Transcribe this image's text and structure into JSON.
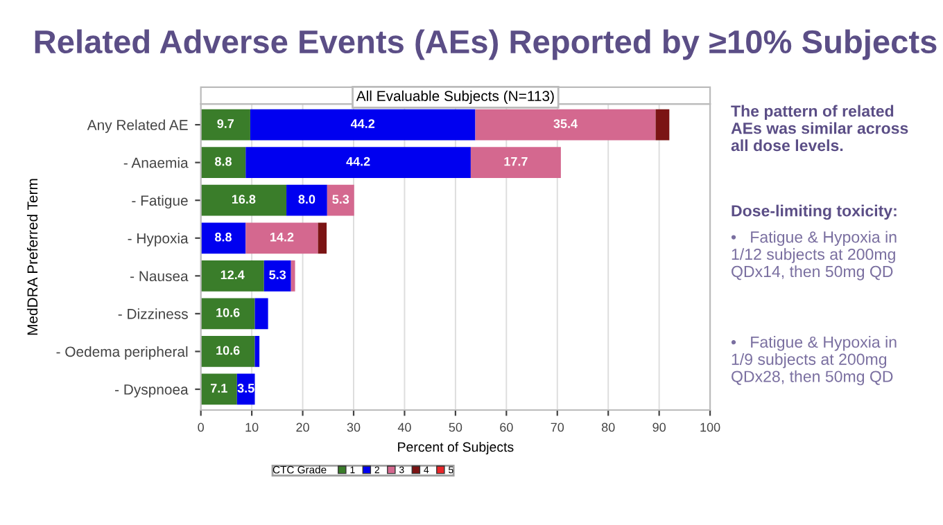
{
  "chart_data": {
    "type": "bar",
    "orientation": "horizontal",
    "stacked": true,
    "title": "Related Adverse Events (AEs) Reported by ≥10% Subjects",
    "subtitle": "All Evaluable Subjects (N=113)",
    "xlabel": "Percent of Subjects",
    "ylabel": "MedDRA Preferred Term",
    "legend_title": "CTC Grade",
    "categories": [
      "Any Related AE",
      "- Anaemia",
      "- Fatigue",
      "- Hypoxia",
      "- Nausea",
      "- Dizziness",
      "- Oedema peripheral",
      "- Dyspnoea"
    ],
    "series": [
      {
        "name": "1",
        "color": "#3a7d2a",
        "values": [
          9.7,
          8.8,
          16.8,
          null,
          12.4,
          10.6,
          10.6,
          7.1
        ],
        "value_labels": [
          "9.7",
          "8.8",
          "16.8",
          null,
          "12.4",
          "10.6",
          "10.6",
          "7.1"
        ]
      },
      {
        "name": "2",
        "color": "#0000f0",
        "values": [
          44.2,
          44.2,
          8.0,
          8.8,
          5.3,
          2.6,
          0.9,
          3.5
        ],
        "value_labels": [
          "44.2",
          "44.2",
          "8.0",
          "8.8",
          "5.3",
          null,
          null,
          "3.5"
        ]
      },
      {
        "name": "3",
        "color": "#d4688f",
        "values": [
          35.4,
          17.7,
          5.3,
          14.2,
          0.8,
          null,
          null,
          null
        ],
        "value_labels": [
          "35.4",
          "17.7",
          "5.3",
          "14.2",
          null,
          null,
          null,
          null
        ]
      },
      {
        "name": "4",
        "color": "#7b1414",
        "values": [
          2.7,
          null,
          null,
          1.7,
          null,
          null,
          null,
          null
        ]
      },
      {
        "name": "5",
        "color": "#e8262a",
        "values": [
          null,
          null,
          null,
          null,
          null,
          null,
          null,
          null
        ]
      }
    ],
    "xlim": [
      0,
      100
    ],
    "xticks": [
      0,
      10,
      20,
      30,
      40,
      50,
      60,
      70,
      80,
      90,
      100
    ],
    "grid": "x",
    "legend": "bottom",
    "annotations": [
      "The pattern of related AEs was similar across all dose levels.",
      "Dose-limiting toxicity:",
      "•   Fatigue & Hypoxia in 1/12 subjects at 200mg QDx14, then 50mg QD",
      "•   Fatigue & Hypoxia in 1/9 subjects at 200mg QDx28, then 50mg QD"
    ]
  }
}
